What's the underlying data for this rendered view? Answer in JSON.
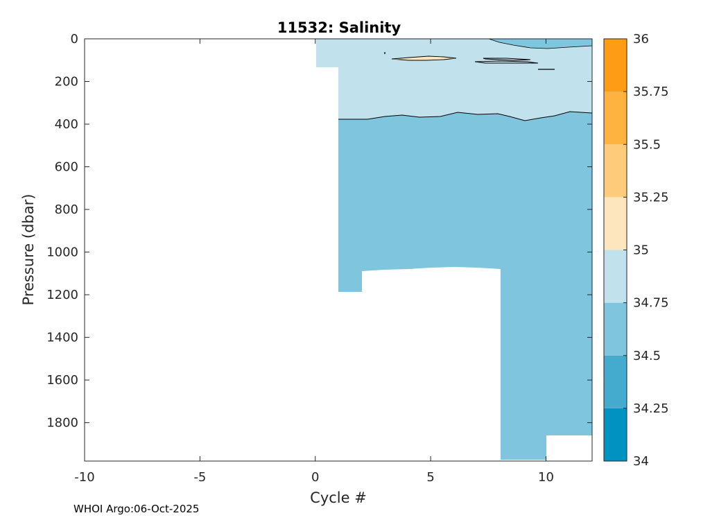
{
  "chart_data": {
    "type": "heatmap",
    "title": "11532:  Salinity",
    "xlabel": "Cycle #",
    "ylabel": "Pressure (dbar)",
    "xlim": [
      -10,
      12
    ],
    "ylim": [
      0,
      1980
    ],
    "y_reversed": true,
    "xticks": [
      -10,
      -5,
      0,
      5,
      10
    ],
    "yticks": [
      0,
      200,
      400,
      600,
      800,
      1000,
      1200,
      1400,
      1600,
      1800
    ],
    "colorbar": {
      "range": [
        34,
        36
      ],
      "ticks": [
        "34",
        "34.25",
        "34.5",
        "34.75",
        "35",
        "35.25",
        "35.5",
        "35.75",
        "36"
      ],
      "bands": [
        {
          "from": 34.0,
          "to": 34.25,
          "color": "#0092c0"
        },
        {
          "from": 34.25,
          "to": 34.5,
          "color": "#44aace"
        },
        {
          "from": 34.5,
          "to": 34.75,
          "color": "#80c5de"
        },
        {
          "from": 34.75,
          "to": 35.0,
          "color": "#c1e1ed"
        },
        {
          "from": 35.0,
          "to": 35.25,
          "color": "#fde6bd"
        },
        {
          "from": 35.25,
          "to": 35.5,
          "color": "#fdcc7b"
        },
        {
          "from": 35.5,
          "to": 35.75,
          "color": "#feb341"
        },
        {
          "from": 35.75,
          "to": 36.0,
          "color": "#fe9c14"
        }
      ]
    },
    "regions": [
      {
        "band": "34.75-35",
        "cycles": [
          0,
          12
        ],
        "pressure": [
          0,
          360
        ]
      },
      {
        "band": "34.5-34.75",
        "cycles": [
          1,
          12
        ],
        "pressure": [
          360,
          1980
        ]
      },
      {
        "band": "35-35.25",
        "cycles": [
          3.3,
          6.1
        ],
        "pressure": [
          80,
          105
        ]
      }
    ]
  },
  "footer": "WHOI Argo:06-Oct-2025"
}
